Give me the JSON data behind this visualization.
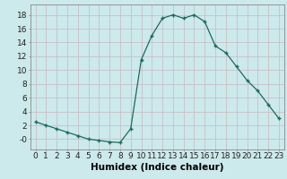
{
  "x": [
    0,
    1,
    2,
    3,
    4,
    5,
    6,
    7,
    8,
    9,
    10,
    11,
    12,
    13,
    14,
    15,
    16,
    17,
    18,
    19,
    20,
    21,
    22,
    23
  ],
  "y": [
    2.5,
    2.0,
    1.5,
    1.0,
    0.5,
    0.0,
    -0.2,
    -0.4,
    -0.5,
    1.5,
    11.5,
    15.0,
    17.5,
    18.0,
    17.5,
    18.0,
    17.0,
    13.5,
    12.5,
    10.5,
    8.5,
    7.0,
    5.0,
    3.0
  ],
  "line_color": "#1a6b5a",
  "marker": "+",
  "marker_size": 4,
  "bg_color": "#cce9ec",
  "grid_color_major": "#b0d4d8",
  "grid_color_minor": "#daf0f2",
  "xlabel": "Humidex (Indice chaleur)",
  "ylim": [
    -1.5,
    19.5
  ],
  "xlim": [
    -0.5,
    23.5
  ],
  "yticks": [
    0,
    2,
    4,
    6,
    8,
    10,
    12,
    14,
    16,
    18
  ],
  "ytick_labels": [
    "-0",
    "2",
    "4",
    "6",
    "8",
    "10",
    "12",
    "14",
    "16",
    "18"
  ],
  "xticks": [
    0,
    1,
    2,
    3,
    4,
    5,
    6,
    7,
    8,
    9,
    10,
    11,
    12,
    13,
    14,
    15,
    16,
    17,
    18,
    19,
    20,
    21,
    22,
    23
  ],
  "font_size": 6.5,
  "xlabel_fontsize": 7.5
}
